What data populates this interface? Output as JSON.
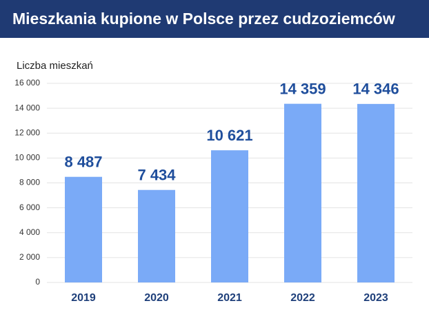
{
  "chart_data": {
    "type": "bar",
    "title": "Mieszkania kupione w Polsce przez cudzoziemców",
    "y_label": "Liczba mieszkań",
    "categories": [
      "2019",
      "2020",
      "2021",
      "2022",
      "2023"
    ],
    "values": [
      8487,
      7434,
      10621,
      14359,
      14346
    ],
    "value_labels": [
      "8 487",
      "7 434",
      "10 621",
      "14 359",
      "14 346"
    ],
    "color": "#7aaaf7",
    "ylim": [
      0,
      16000
    ],
    "yticks": [
      0,
      {
        "value": 2000,
        "label": "2 000"
      },
      {
        "value": 4000,
        "label": "4 000"
      },
      {
        "value": 6000,
        "label": "6 000"
      },
      {
        "value": 8000,
        "label": "8 000"
      },
      {
        "value": 10000,
        "label": "10 000"
      },
      {
        "value": 12000,
        "label": "12 000"
      },
      {
        "value": 14000,
        "label": "14 000"
      },
      {
        "value": 16000,
        "label": "16 000"
      }
    ],
    "grid": true
  }
}
